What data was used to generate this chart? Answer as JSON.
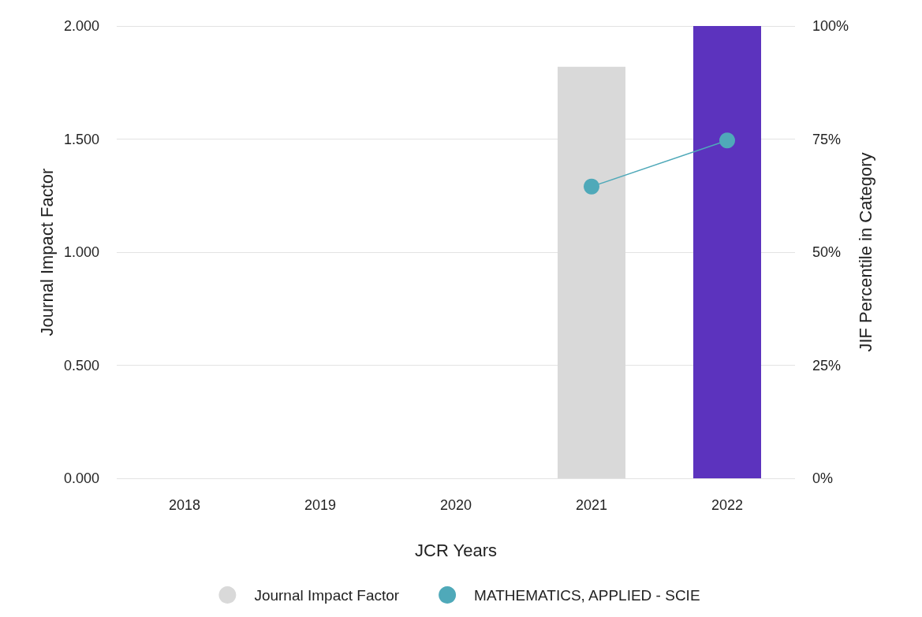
{
  "chart_data": {
    "type": "bar",
    "categories": [
      "2018",
      "2019",
      "2020",
      "2021",
      "2022"
    ],
    "xlabel": "JCR Years",
    "ylabel": "Journal Impact Factor",
    "y2label": "JIF Percentile in Category",
    "series": [
      {
        "name": "Journal Impact Factor",
        "color": "#d9d9d9",
        "colors": [
          "#d9d9d9",
          "#d9d9d9",
          "#d9d9d9",
          "#d9d9d9",
          "#5c33be"
        ],
        "values": [
          null,
          null,
          null,
          1.82,
          2.0
        ]
      },
      {
        "name": "MATHEMATICS, APPLIED - SCIE",
        "type": "line",
        "axis": "y2",
        "color": "#4fa9b9",
        "values": [
          null,
          null,
          null,
          64.5,
          74.7
        ]
      }
    ],
    "ylim": [
      0,
      2
    ],
    "yticks": [
      {
        "value": 0,
        "label": "0.000"
      },
      {
        "value": 0.5,
        "label": "0.500"
      },
      {
        "value": 1,
        "label": "1.000"
      },
      {
        "value": 1.5,
        "label": "1.500"
      },
      {
        "value": 2,
        "label": "2.000"
      }
    ],
    "y2lim": [
      0,
      100
    ],
    "y2ticks": [
      {
        "value": 0,
        "label": "0%"
      },
      {
        "value": 25,
        "label": "25%"
      },
      {
        "value": 50,
        "label": "50%"
      },
      {
        "value": 75,
        "label": "75%"
      },
      {
        "value": 100,
        "label": "100%"
      }
    ],
    "grid": "y",
    "legend": "bottom",
    "marker": "circle",
    "line_style": "solid"
  }
}
